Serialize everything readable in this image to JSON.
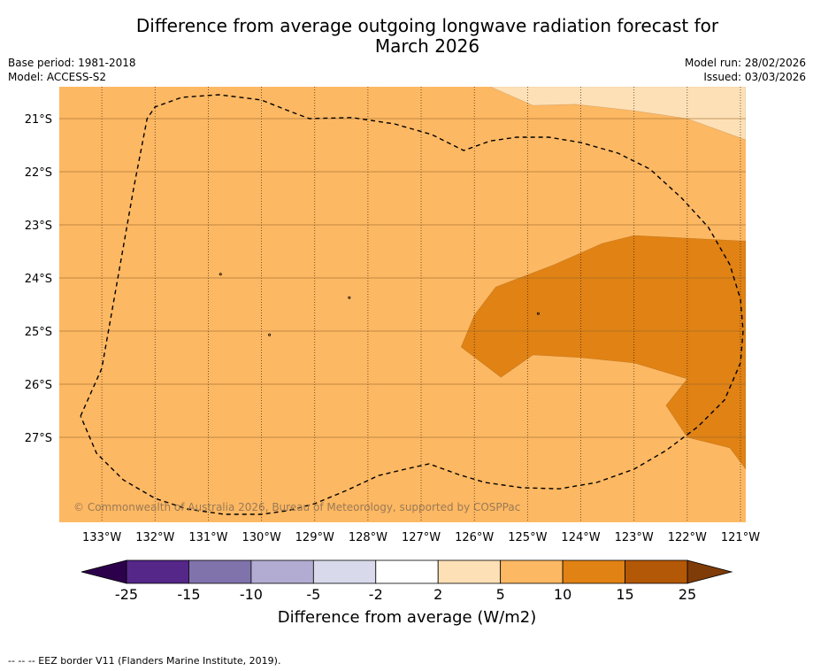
{
  "title_line1": "Difference from average outgoing longwave radiation forecast for",
  "title_line2": "March 2026",
  "base_period": "Base period: 1981-2018",
  "model": "Model: ACCESS-S2",
  "model_run": "Model run: 28/02/2026",
  "issued": "Issued: 03/03/2026",
  "copyright": "© Commonwealth of Australia 2026, Bureau of Meteorology, supported by COSPPac",
  "footer_note": "--  --  -- EEZ border V11 (Flanders Marine Institute, 2019).",
  "map": {
    "lon_range": [
      -133.8,
      -120.9
    ],
    "lat_range": [
      -28.6,
      -20.4
    ],
    "lon_ticks": [
      {
        "value": -133,
        "label": "133°W"
      },
      {
        "value": -132,
        "label": "132°W"
      },
      {
        "value": -131,
        "label": "131°W"
      },
      {
        "value": -130,
        "label": "130°W"
      },
      {
        "value": -129,
        "label": "129°W"
      },
      {
        "value": -128,
        "label": "128°W"
      },
      {
        "value": -127,
        "label": "127°W"
      },
      {
        "value": -126,
        "label": "126°W"
      },
      {
        "value": -125,
        "label": "125°W"
      },
      {
        "value": -124,
        "label": "124°W"
      },
      {
        "value": -123,
        "label": "123°W"
      },
      {
        "value": -122,
        "label": "122°W"
      },
      {
        "value": -121,
        "label": "121°W"
      }
    ],
    "lat_ticks": [
      {
        "value": -21,
        "label": "21°S"
      },
      {
        "value": -22,
        "label": "22°S"
      },
      {
        "value": -23,
        "label": "23°S"
      },
      {
        "value": -24,
        "label": "24°S"
      },
      {
        "value": -25,
        "label": "25°S"
      },
      {
        "value": -26,
        "label": "26°S"
      },
      {
        "value": -27,
        "label": "27°S"
      }
    ],
    "background_category": "5 to 10",
    "regions": [
      {
        "category": "2 to 5",
        "color": "#fee0b6",
        "coords": [
          [
            -125.7,
            -20.4
          ],
          [
            -124.9,
            -20.75
          ],
          [
            -124.1,
            -20.73
          ],
          [
            -123.0,
            -20.85
          ],
          [
            -122.0,
            -21.0
          ],
          [
            -120.9,
            -21.4
          ],
          [
            -120.9,
            -20.4
          ]
        ]
      },
      {
        "category": "10 to 15",
        "color": "#e08214",
        "coords": [
          [
            -125.6,
            -24.17
          ],
          [
            -124.5,
            -23.75
          ],
          [
            -123.6,
            -23.35
          ],
          [
            -123.0,
            -23.2
          ],
          [
            -122.0,
            -23.25
          ],
          [
            -121.0,
            -23.3
          ],
          [
            -120.9,
            -23.3
          ],
          [
            -120.9,
            -27.6
          ],
          [
            -121.2,
            -27.2
          ],
          [
            -122.0,
            -27.0
          ],
          [
            -122.4,
            -26.4
          ],
          [
            -122.0,
            -25.9
          ],
          [
            -123.0,
            -25.6
          ],
          [
            -124.0,
            -25.5
          ],
          [
            -124.9,
            -25.45
          ],
          [
            -125.5,
            -25.87
          ],
          [
            -126.25,
            -25.3
          ],
          [
            -126.0,
            -24.7
          ]
        ]
      }
    ],
    "eez_border": [
      [
        -133.4,
        -26.6
      ],
      [
        -133.0,
        -25.7
      ],
      [
        -132.7,
        -24.0
      ],
      [
        -132.4,
        -22.3
      ],
      [
        -132.15,
        -21.0
      ],
      [
        -132.0,
        -20.78
      ],
      [
        -131.5,
        -20.6
      ],
      [
        -130.8,
        -20.55
      ],
      [
        -130.0,
        -20.65
      ],
      [
        -129.5,
        -20.85
      ],
      [
        -129.1,
        -21.0
      ],
      [
        -128.3,
        -20.98
      ],
      [
        -127.5,
        -21.1
      ],
      [
        -126.8,
        -21.3
      ],
      [
        -126.2,
        -21.6
      ],
      [
        -125.7,
        -21.42
      ],
      [
        -125.2,
        -21.35
      ],
      [
        -124.6,
        -21.35
      ],
      [
        -124.0,
        -21.45
      ],
      [
        -123.3,
        -21.65
      ],
      [
        -122.7,
        -21.95
      ],
      [
        -122.1,
        -22.5
      ],
      [
        -121.6,
        -23.05
      ],
      [
        -121.2,
        -23.75
      ],
      [
        -121.0,
        -24.4
      ],
      [
        -120.95,
        -25.0
      ],
      [
        -121.0,
        -25.6
      ],
      [
        -121.3,
        -26.3
      ],
      [
        -121.8,
        -26.8
      ],
      [
        -122.4,
        -27.25
      ],
      [
        -123.0,
        -27.6
      ],
      [
        -123.7,
        -27.85
      ],
      [
        -124.4,
        -27.97
      ],
      [
        -125.1,
        -27.95
      ],
      [
        -125.8,
        -27.85
      ],
      [
        -126.3,
        -27.7
      ],
      [
        -126.85,
        -27.5
      ],
      [
        -127.3,
        -27.6
      ],
      [
        -127.8,
        -27.72
      ],
      [
        -128.4,
        -28.0
      ],
      [
        -129.0,
        -28.25
      ],
      [
        -129.5,
        -28.38
      ],
      [
        -130.0,
        -28.45
      ],
      [
        -130.7,
        -28.45
      ],
      [
        -131.4,
        -28.35
      ],
      [
        -132.0,
        -28.15
      ],
      [
        -132.6,
        -27.8
      ],
      [
        -133.1,
        -27.3
      ],
      [
        -133.4,
        -26.6
      ]
    ],
    "small_features": [
      [
        -130.77,
        -23.93
      ],
      [
        -128.35,
        -24.37
      ],
      [
        -124.8,
        -24.67
      ],
      [
        -129.85,
        -25.07
      ]
    ]
  },
  "colorbar": {
    "label": "Difference from average (W/m2)",
    "bins": [
      {
        "color": "#542788",
        "from": "-25",
        "to": "-15"
      },
      {
        "color": "#8073ac",
        "from": "-15",
        "to": "-10"
      },
      {
        "color": "#b2abd2",
        "from": "-10",
        "to": "-5"
      },
      {
        "color": "#d8daeb",
        "from": "-5",
        "to": "-2"
      },
      {
        "color": "#ffffff",
        "from": "-2",
        "to": "2"
      },
      {
        "color": "#fee0b6",
        "from": "2",
        "to": "5"
      },
      {
        "color": "#fdb863",
        "from": "5",
        "to": "10"
      },
      {
        "color": "#e08214",
        "from": "10",
        "to": "15"
      },
      {
        "color": "#b35806",
        "from": "15",
        "to": "25"
      }
    ],
    "extend_low_color": "#2d004b",
    "extend_high_color": "#7f3b08",
    "tick_labels": [
      "-25",
      "-15",
      "-10",
      "-5",
      "-2",
      "2",
      "5",
      "10",
      "15",
      "25"
    ]
  },
  "colors": {
    "background_fill": "#fdb863",
    "grid_line": "#9a6a2a"
  }
}
